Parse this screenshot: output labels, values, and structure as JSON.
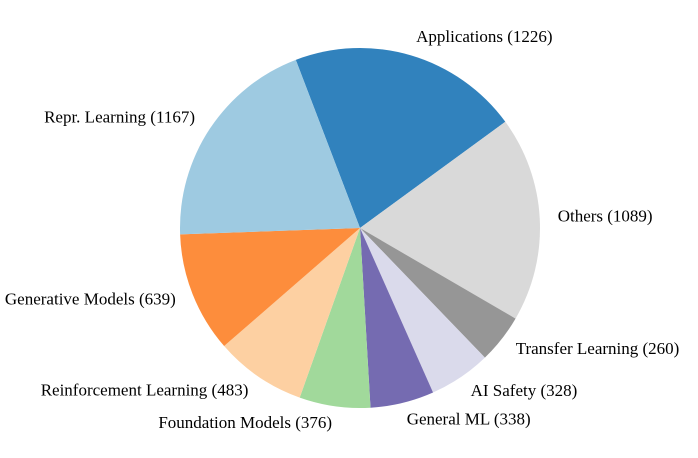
{
  "chart_data": {
    "type": "pie",
    "title": "",
    "start_angle_deg": 110.9,
    "direction": "clockwise",
    "slices": [
      {
        "label": "Applications",
        "value": 1226,
        "text": "Applications (1226)",
        "color": "#3182bd"
      },
      {
        "label": "Others",
        "value": 1089,
        "text": "Others (1089)",
        "color": "#d9d9d9"
      },
      {
        "label": "Transfer Learning",
        "value": 260,
        "text": "Transfer Learning (260)",
        "color": "#969696"
      },
      {
        "label": "AI Safety",
        "value": 328,
        "text": "AI Safety (328)",
        "color": "#dadaeb"
      },
      {
        "label": "General ML",
        "value": 338,
        "text": "General ML (338)",
        "color": "#756bb1"
      },
      {
        "label": "Foundation Models",
        "value": 376,
        "text": "Foundation Models (376)",
        "color": "#a1d99b"
      },
      {
        "label": "Reinforcement Learning",
        "value": 483,
        "text": "Reinforcement Learning (483)",
        "color": "#fdd0a2"
      },
      {
        "label": "Generative Models",
        "value": 639,
        "text": "Generative Models (639)",
        "color": "#fd8d3c"
      },
      {
        "label": "Repr. Learning",
        "value": 1167,
        "text": "Repr. Learning (1167)",
        "color": "#9ecae1"
      }
    ]
  }
}
